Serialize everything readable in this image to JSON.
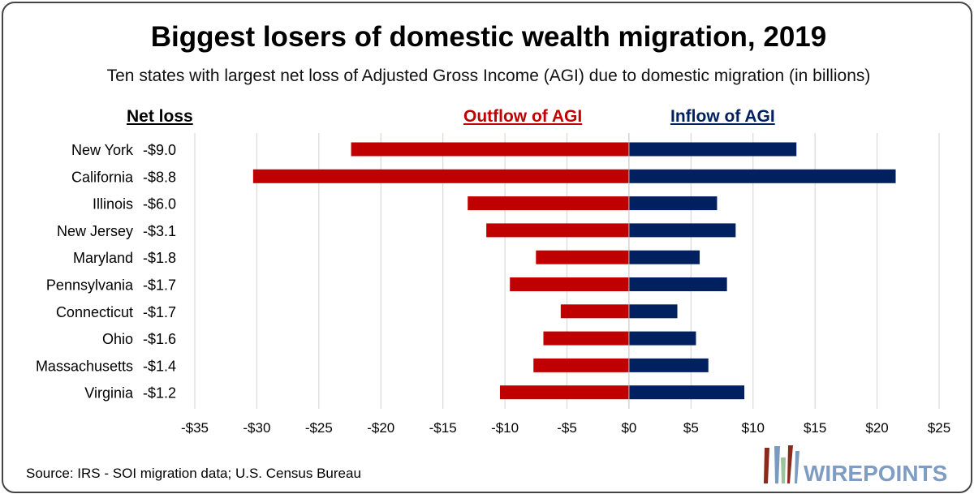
{
  "header": {
    "title": "Biggest losers of domestic wealth migration, 2019",
    "subtitle": "Ten states with largest net loss of Adjusted Gross Income (AGI) due to domestic migration (in billions)",
    "net_loss_label": "Net loss",
    "outflow_label": "Outflow of AGI",
    "inflow_label": "Inflow of AGI"
  },
  "source": "Source: IRS - SOI migration data; U.S. Census Bureau",
  "logo": "WIREPOINTS",
  "chart_data": {
    "type": "bar",
    "orientation": "horizontal",
    "stacked": "diverging",
    "categories": [
      "New York",
      "California",
      "Illinois",
      "New Jersey",
      "Maryland",
      "Pennsylvania",
      "Connecticut",
      "Ohio",
      "Massachusetts",
      "Virginia"
    ],
    "net_loss_labels": [
      "-$9.0",
      "-$8.8",
      "-$6.0",
      "-$3.1",
      "-$1.8",
      "-$1.7",
      "-$1.7",
      "-$1.6",
      "-$1.4",
      "-$1.2"
    ],
    "series": [
      {
        "name": "Outflow of AGI",
        "color": "#c00000",
        "values": [
          -22.4,
          -30.3,
          -13.0,
          -11.5,
          -7.5,
          -9.6,
          -5.5,
          -6.9,
          -7.7,
          -10.4
        ]
      },
      {
        "name": "Inflow of AGI",
        "color": "#002060",
        "values": [
          13.5,
          21.5,
          7.1,
          8.6,
          5.7,
          7.9,
          3.9,
          5.4,
          6.4,
          9.3
        ]
      }
    ],
    "xlim": [
      -35,
      25
    ],
    "xticks": [
      -35,
      -30,
      -25,
      -20,
      -15,
      -10,
      -5,
      0,
      5,
      10,
      15,
      20,
      25
    ],
    "xtick_labels": [
      "-$35",
      "-$30",
      "-$25",
      "-$20",
      "-$15",
      "-$10",
      "-$5",
      "$0",
      "$5",
      "$10",
      "$15",
      "$20",
      "$25"
    ],
    "grid": true
  }
}
